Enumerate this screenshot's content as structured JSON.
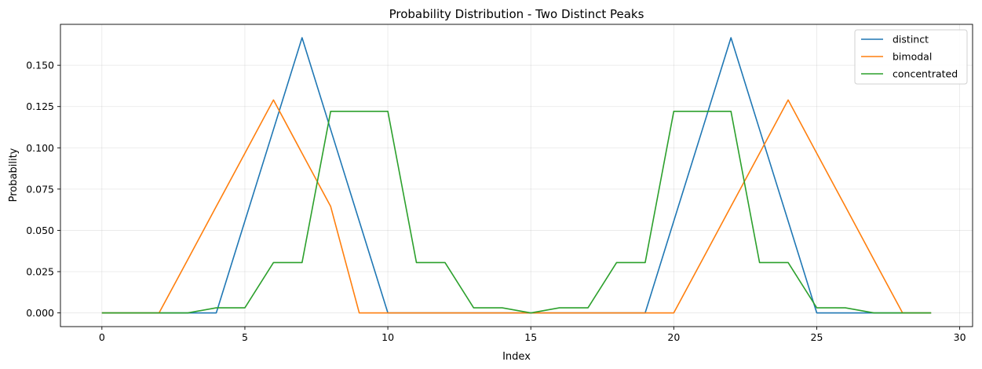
{
  "chart_data": {
    "type": "line",
    "title": "Probability Distribution - Two Distinct Peaks",
    "xlabel": "Index",
    "ylabel": "Probability",
    "xlim": [
      -1.45,
      30.45
    ],
    "ylim": [
      -0.0083,
      0.1748
    ],
    "xticks": [
      0,
      5,
      10,
      15,
      20,
      25,
      30
    ],
    "xtick_labels": [
      "0",
      "5",
      "10",
      "15",
      "20",
      "25",
      "30"
    ],
    "yticks": [
      0,
      0.025,
      0.05,
      0.075,
      0.1,
      0.125,
      0.15
    ],
    "ytick_labels": [
      "0.000",
      "0.025",
      "0.050",
      "0.075",
      "0.100",
      "0.125",
      "0.150"
    ],
    "grid": true,
    "legend_position": "top-right",
    "x": [
      0,
      1,
      2,
      3,
      4,
      5,
      6,
      7,
      8,
      9,
      10,
      11,
      12,
      13,
      14,
      15,
      16,
      17,
      18,
      19,
      20,
      21,
      22,
      23,
      24,
      25,
      26,
      27,
      28,
      29
    ],
    "series": [
      {
        "name": "distinct",
        "color": "#1f77b4",
        "values": [
          0,
          0,
          0,
          0,
          0,
          0.0556,
          0.1111,
          0.1667,
          0.1111,
          0.0556,
          0,
          0,
          0,
          0,
          0,
          0,
          0,
          0,
          0,
          0,
          0.0556,
          0.1111,
          0.1667,
          0.1111,
          0.0556,
          0,
          0,
          0,
          0,
          0
        ]
      },
      {
        "name": "bimodal",
        "color": "#ff7f0e",
        "values": [
          0,
          0,
          0,
          0.0322,
          0.0645,
          0.0967,
          0.129,
          0.0967,
          0.0645,
          0,
          0,
          0,
          0,
          0,
          0,
          0,
          0,
          0,
          0,
          0,
          0,
          0.0322,
          0.0645,
          0.0967,
          0.129,
          0.0967,
          0.0645,
          0.0322,
          0,
          0
        ]
      },
      {
        "name": "concentrated",
        "color": "#2ca02c",
        "values": [
          0,
          0,
          0,
          0,
          0.0031,
          0.0031,
          0.0305,
          0.0305,
          0.1221,
          0.1221,
          0.1221,
          0.0305,
          0.0305,
          0.0031,
          0.0031,
          0,
          0.0031,
          0.0031,
          0.0305,
          0.0305,
          0.1221,
          0.1221,
          0.1221,
          0.0305,
          0.0305,
          0.0031,
          0.0031,
          0,
          0,
          0
        ]
      }
    ]
  }
}
